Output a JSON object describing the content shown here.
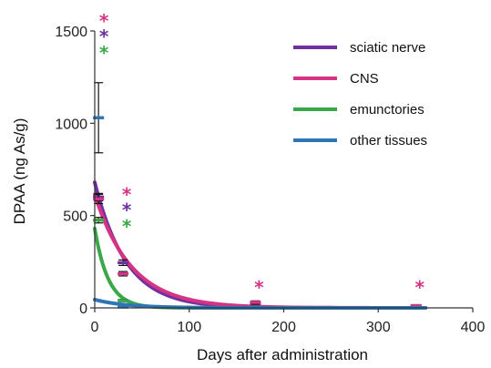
{
  "chart_data": {
    "type": "line",
    "title": "",
    "xlabel": "Days after administration",
    "ylabel": "DPAA (ng As/g)",
    "xlim": [
      0,
      400
    ],
    "ylim": [
      0,
      1500
    ],
    "xticks": [
      0,
      100,
      200,
      300,
      400
    ],
    "yticks": [
      0,
      500,
      1000,
      1500
    ],
    "grid": false,
    "legend_position": "top-right",
    "series": [
      {
        "name": "sciatic nerve",
        "color": "#7030a0",
        "fit": {
          "a": 680,
          "k": 0.03
        },
        "points": [
          {
            "x": 4,
            "y": 600,
            "err": 20
          },
          {
            "x": 30,
            "y": 245,
            "err": 15
          },
          {
            "x": 170,
            "y": 25,
            "err": 8
          },
          {
            "x": 340,
            "y": 10,
            "err": 5
          }
        ]
      },
      {
        "name": "CNS",
        "color": "#d63384",
        "fit": {
          "a": 615,
          "k": 0.026
        },
        "points": [
          {
            "x": 4,
            "y": 590,
            "err": 25
          },
          {
            "x": 30,
            "y": 185,
            "err": 12
          },
          {
            "x": 170,
            "y": 30,
            "err": 8
          },
          {
            "x": 340,
            "y": 12,
            "err": 5
          }
        ]
      },
      {
        "name": "emunctories",
        "color": "#3aa848",
        "fit": {
          "a": 430,
          "k": 0.07
        },
        "points": [
          {
            "x": 4,
            "y": 475,
            "err": 15
          },
          {
            "x": 30,
            "y": 40,
            "err": 6
          },
          {
            "x": 170,
            "y": 3,
            "err": 2
          },
          {
            "x": 340,
            "y": 2,
            "err": 1
          }
        ]
      },
      {
        "name": "other tissues",
        "color": "#2e75b6",
        "fit": {
          "a": 45,
          "k": 0.03
        },
        "points": [
          {
            "x": 4,
            "y": 1030,
            "err": 190
          },
          {
            "x": 30,
            "y": 5,
            "err": 3
          },
          {
            "x": 170,
            "y": 3,
            "err": 2
          },
          {
            "x": 340,
            "y": 2,
            "err": 1
          }
        ]
      }
    ],
    "annotations": [
      {
        "text": "*",
        "x": 4,
        "y": 1590,
        "color": "#d63384"
      },
      {
        "text": "*",
        "x": 4,
        "y": 1505,
        "color": "#7030a0"
      },
      {
        "text": "*",
        "x": 4,
        "y": 1415,
        "color": "#3aa848"
      },
      {
        "text": "*",
        "x": 30,
        "y": 650,
        "color": "#d63384"
      },
      {
        "text": "*",
        "x": 30,
        "y": 565,
        "color": "#7030a0"
      },
      {
        "text": "*",
        "x": 30,
        "y": 475,
        "color": "#3aa848"
      },
      {
        "text": "*",
        "x": 170,
        "y": 145,
        "color": "#d63384"
      },
      {
        "text": "*",
        "x": 340,
        "y": 145,
        "color": "#d63384"
      }
    ]
  }
}
